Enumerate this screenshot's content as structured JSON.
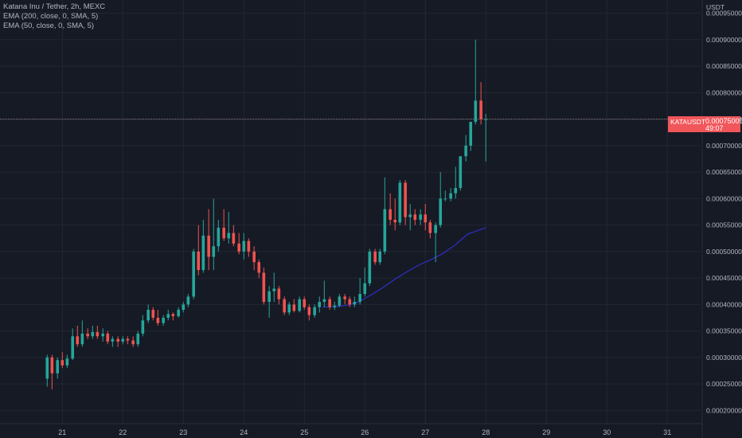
{
  "legend": {
    "title": "Katana Inu / Tether, 2h, MEXC",
    "ema200": "EMA (200, close, 0, SMA, 5)",
    "ema50": "EMA (50, close, 0, SMA, 5)"
  },
  "colors": {
    "background": "#161a25",
    "grid": "#232733",
    "up": "#26a69a",
    "down": "#ef5350",
    "ema": "#2f2fc8",
    "text": "#b2b5be",
    "price_tag": "#f0565a"
  },
  "price_tag": {
    "symbol": "KATAUSDT",
    "price": "0.00075009",
    "countdown": "49:07"
  },
  "chart_data": {
    "type": "candlestick",
    "title": "Katana Inu / Tether, 2h, MEXC",
    "y_axis_unit": "USDT",
    "ylim": [
      0.000175,
      0.000975
    ],
    "xlim": [
      19.97,
      31.55
    ],
    "y_ticks": [
      0.00095,
      0.0009,
      0.00085,
      0.0008,
      0.00075,
      0.0007,
      0.00065,
      0.0006,
      0.00055,
      0.0005,
      0.00045,
      0.0004,
      0.00035,
      0.0003,
      0.00025,
      0.0002
    ],
    "y_tick_labels": [
      "0.00095000",
      "0.00090000",
      "0.00085000",
      "0.00080000",
      "0.00075000",
      "0.00070000",
      "0.00065000",
      "0.00060000",
      "0.00055000",
      "0.00050000",
      "0.00045000",
      "0.00040000",
      "0.00035000",
      "0.00030000",
      "0.00025000",
      "0.00020000"
    ],
    "x_ticks": [
      21,
      22,
      23,
      24,
      25,
      26,
      27,
      28,
      29,
      30,
      31
    ],
    "x_tick_labels": [
      "21",
      "22",
      "23",
      "24",
      "25",
      "26",
      "27",
      "28",
      "29",
      "30",
      "31"
    ],
    "grid": true,
    "last_price": 0.00075009,
    "candles": [
      {
        "t": 20.75,
        "o": 0.00026,
        "h": 0.000305,
        "l": 0.000245,
        "c": 0.0003
      },
      {
        "t": 20.83,
        "o": 0.0003,
        "h": 0.000305,
        "l": 0.00024,
        "c": 0.00027
      },
      {
        "t": 20.92,
        "o": 0.00027,
        "h": 0.0003,
        "l": 0.00026,
        "c": 0.000295
      },
      {
        "t": 21.0,
        "o": 0.000295,
        "h": 0.00031,
        "l": 0.00028,
        "c": 0.000285
      },
      {
        "t": 21.08,
        "o": 0.000285,
        "h": 0.000305,
        "l": 0.00028,
        "c": 0.000298
      },
      {
        "t": 21.17,
        "o": 0.000298,
        "h": 0.000355,
        "l": 0.000295,
        "c": 0.00034
      },
      {
        "t": 21.25,
        "o": 0.00034,
        "h": 0.00036,
        "l": 0.00032,
        "c": 0.000325
      },
      {
        "t": 21.33,
        "o": 0.000325,
        "h": 0.00037,
        "l": 0.00032,
        "c": 0.000345
      },
      {
        "t": 21.42,
        "o": 0.000345,
        "h": 0.000355,
        "l": 0.000335,
        "c": 0.00034
      },
      {
        "t": 21.5,
        "o": 0.00034,
        "h": 0.00036,
        "l": 0.000335,
        "c": 0.000348
      },
      {
        "t": 21.58,
        "o": 0.000348,
        "h": 0.00036,
        "l": 0.000335,
        "c": 0.00034
      },
      {
        "t": 21.67,
        "o": 0.00034,
        "h": 0.000355,
        "l": 0.00033,
        "c": 0.000345
      },
      {
        "t": 21.75,
        "o": 0.000345,
        "h": 0.00035,
        "l": 0.000325,
        "c": 0.00033
      },
      {
        "t": 21.83,
        "o": 0.00033,
        "h": 0.00034,
        "l": 0.00032,
        "c": 0.000335
      },
      {
        "t": 21.92,
        "o": 0.000335,
        "h": 0.00034,
        "l": 0.00032,
        "c": 0.00033
      },
      {
        "t": 22.0,
        "o": 0.00033,
        "h": 0.00034,
        "l": 0.000325,
        "c": 0.000335
      },
      {
        "t": 22.08,
        "o": 0.000335,
        "h": 0.00034,
        "l": 0.000325,
        "c": 0.000332
      },
      {
        "t": 22.17,
        "o": 0.000332,
        "h": 0.00034,
        "l": 0.00032,
        "c": 0.000325
      },
      {
        "t": 22.25,
        "o": 0.000325,
        "h": 0.00035,
        "l": 0.00032,
        "c": 0.000345
      },
      {
        "t": 22.33,
        "o": 0.000345,
        "h": 0.00038,
        "l": 0.00034,
        "c": 0.00037
      },
      {
        "t": 22.42,
        "o": 0.00037,
        "h": 0.0004,
        "l": 0.000365,
        "c": 0.00039
      },
      {
        "t": 22.5,
        "o": 0.00039,
        "h": 0.000395,
        "l": 0.00037,
        "c": 0.000375
      },
      {
        "t": 22.58,
        "o": 0.000375,
        "h": 0.00039,
        "l": 0.00036,
        "c": 0.000365
      },
      {
        "t": 22.67,
        "o": 0.000365,
        "h": 0.00038,
        "l": 0.00036,
        "c": 0.000375
      },
      {
        "t": 22.75,
        "o": 0.000375,
        "h": 0.00039,
        "l": 0.00037,
        "c": 0.000382
      },
      {
        "t": 22.83,
        "o": 0.000382,
        "h": 0.000385,
        "l": 0.00037,
        "c": 0.000378
      },
      {
        "t": 22.92,
        "o": 0.000378,
        "h": 0.000395,
        "l": 0.000375,
        "c": 0.00039
      },
      {
        "t": 23.0,
        "o": 0.00039,
        "h": 0.000405,
        "l": 0.000385,
        "c": 0.0004
      },
      {
        "t": 23.08,
        "o": 0.0004,
        "h": 0.00042,
        "l": 0.000395,
        "c": 0.000415
      },
      {
        "t": 23.17,
        "o": 0.000415,
        "h": 0.000505,
        "l": 0.00041,
        "c": 0.0005
      },
      {
        "t": 23.25,
        "o": 0.0005,
        "h": 0.00055,
        "l": 0.000455,
        "c": 0.000465
      },
      {
        "t": 23.33,
        "o": 0.000465,
        "h": 0.00056,
        "l": 0.00046,
        "c": 0.00053
      },
      {
        "t": 23.42,
        "o": 0.00053,
        "h": 0.00058,
        "l": 0.000465,
        "c": 0.00049
      },
      {
        "t": 23.5,
        "o": 0.00049,
        "h": 0.0006,
        "l": 0.000465,
        "c": 0.00051
      },
      {
        "t": 23.58,
        "o": 0.00051,
        "h": 0.00056,
        "l": 0.0005,
        "c": 0.000545
      },
      {
        "t": 23.67,
        "o": 0.000545,
        "h": 0.00058,
        "l": 0.00052,
        "c": 0.000525
      },
      {
        "t": 23.75,
        "o": 0.000525,
        "h": 0.000575,
        "l": 0.000515,
        "c": 0.000535
      },
      {
        "t": 23.83,
        "o": 0.000535,
        "h": 0.00055,
        "l": 0.00051,
        "c": 0.000515
      },
      {
        "t": 23.92,
        "o": 0.000515,
        "h": 0.000535,
        "l": 0.000495,
        "c": 0.0005
      },
      {
        "t": 24.0,
        "o": 0.0005,
        "h": 0.000535,
        "l": 0.000485,
        "c": 0.00052
      },
      {
        "t": 24.08,
        "o": 0.00052,
        "h": 0.000525,
        "l": 0.00049,
        "c": 0.0005
      },
      {
        "t": 24.17,
        "o": 0.0005,
        "h": 0.00051,
        "l": 0.000465,
        "c": 0.00048
      },
      {
        "t": 24.25,
        "o": 0.00048,
        "h": 0.000485,
        "l": 0.00045,
        "c": 0.00046
      },
      {
        "t": 24.33,
        "o": 0.00046,
        "h": 0.00047,
        "l": 0.0004,
        "c": 0.000405
      },
      {
        "t": 24.42,
        "o": 0.000405,
        "h": 0.000435,
        "l": 0.000375,
        "c": 0.000425
      },
      {
        "t": 24.5,
        "o": 0.000425,
        "h": 0.00046,
        "l": 0.000405,
        "c": 0.00043
      },
      {
        "t": 24.58,
        "o": 0.00043,
        "h": 0.000435,
        "l": 0.0004,
        "c": 0.00041
      },
      {
        "t": 24.67,
        "o": 0.00041,
        "h": 0.000415,
        "l": 0.00038,
        "c": 0.000385
      },
      {
        "t": 24.75,
        "o": 0.000385,
        "h": 0.000405,
        "l": 0.00038,
        "c": 0.0004
      },
      {
        "t": 24.83,
        "o": 0.0004,
        "h": 0.00041,
        "l": 0.000385,
        "c": 0.000388
      },
      {
        "t": 24.92,
        "o": 0.000388,
        "h": 0.000415,
        "l": 0.000385,
        "c": 0.00041
      },
      {
        "t": 25.0,
        "o": 0.00041,
        "h": 0.000415,
        "l": 0.00039,
        "c": 0.000395
      },
      {
        "t": 25.08,
        "o": 0.000395,
        "h": 0.0004,
        "l": 0.00037,
        "c": 0.00038
      },
      {
        "t": 25.17,
        "o": 0.00038,
        "h": 0.0004,
        "l": 0.000375,
        "c": 0.000395
      },
      {
        "t": 25.25,
        "o": 0.000395,
        "h": 0.000415,
        "l": 0.000385,
        "c": 0.000405
      },
      {
        "t": 25.33,
        "o": 0.000405,
        "h": 0.000445,
        "l": 0.000395,
        "c": 0.00041
      },
      {
        "t": 25.42,
        "o": 0.00041,
        "h": 0.000415,
        "l": 0.00039,
        "c": 0.000395
      },
      {
        "t": 25.5,
        "o": 0.000395,
        "h": 0.000405,
        "l": 0.00039,
        "c": 0.000398
      },
      {
        "t": 25.58,
        "o": 0.000398,
        "h": 0.00042,
        "l": 0.000395,
        "c": 0.000415
      },
      {
        "t": 25.67,
        "o": 0.000415,
        "h": 0.00042,
        "l": 0.0004,
        "c": 0.00041
      },
      {
        "t": 25.75,
        "o": 0.00041,
        "h": 0.000415,
        "l": 0.000395,
        "c": 0.0004
      },
      {
        "t": 25.83,
        "o": 0.0004,
        "h": 0.000415,
        "l": 0.000395,
        "c": 0.000405
      },
      {
        "t": 25.92,
        "o": 0.000405,
        "h": 0.00045,
        "l": 0.0004,
        "c": 0.00042
      },
      {
        "t": 26.0,
        "o": 0.00042,
        "h": 0.00047,
        "l": 0.000415,
        "c": 0.00044
      },
      {
        "t": 26.08,
        "o": 0.00044,
        "h": 0.000505,
        "l": 0.000435,
        "c": 0.0005
      },
      {
        "t": 26.17,
        "o": 0.0005,
        "h": 0.000505,
        "l": 0.000475,
        "c": 0.00048
      },
      {
        "t": 26.25,
        "o": 0.00048,
        "h": 0.000505,
        "l": 0.000475,
        "c": 0.0005
      },
      {
        "t": 26.33,
        "o": 0.0005,
        "h": 0.00064,
        "l": 0.000495,
        "c": 0.00058
      },
      {
        "t": 26.42,
        "o": 0.00058,
        "h": 0.00061,
        "l": 0.00055,
        "c": 0.00056
      },
      {
        "t": 26.5,
        "o": 0.00056,
        "h": 0.0006,
        "l": 0.00054,
        "c": 0.000555
      },
      {
        "t": 26.58,
        "o": 0.000555,
        "h": 0.000635,
        "l": 0.00055,
        "c": 0.00063
      },
      {
        "t": 26.67,
        "o": 0.00063,
        "h": 0.000635,
        "l": 0.00055,
        "c": 0.000565
      },
      {
        "t": 26.75,
        "o": 0.000565,
        "h": 0.00059,
        "l": 0.00054,
        "c": 0.00057
      },
      {
        "t": 26.83,
        "o": 0.00057,
        "h": 0.00058,
        "l": 0.00055,
        "c": 0.00056
      },
      {
        "t": 26.92,
        "o": 0.00056,
        "h": 0.00058,
        "l": 0.00055,
        "c": 0.00057
      },
      {
        "t": 27.0,
        "o": 0.00057,
        "h": 0.00059,
        "l": 0.00054,
        "c": 0.000555
      },
      {
        "t": 27.08,
        "o": 0.000555,
        "h": 0.00056,
        "l": 0.000525,
        "c": 0.000535
      },
      {
        "t": 27.17,
        "o": 0.000535,
        "h": 0.000555,
        "l": 0.00048,
        "c": 0.00055
      },
      {
        "t": 27.25,
        "o": 0.00055,
        "h": 0.00065,
        "l": 0.000545,
        "c": 0.0006
      },
      {
        "t": 27.33,
        "o": 0.0006,
        "h": 0.000615,
        "l": 0.000595,
        "c": 0.0006
      },
      {
        "t": 27.42,
        "o": 0.0006,
        "h": 0.00062,
        "l": 0.000595,
        "c": 0.00061
      },
      {
        "t": 27.5,
        "o": 0.00061,
        "h": 0.00066,
        "l": 0.0006,
        "c": 0.00062
      },
      {
        "t": 27.58,
        "o": 0.00062,
        "h": 0.00068,
        "l": 0.000615,
        "c": 0.00068
      },
      {
        "t": 27.67,
        "o": 0.00068,
        "h": 0.00072,
        "l": 0.00067,
        "c": 0.0007
      },
      {
        "t": 27.75,
        "o": 0.0007,
        "h": 0.000745,
        "l": 0.00069,
        "c": 0.000745
      },
      {
        "t": 27.83,
        "o": 0.000745,
        "h": 0.0009,
        "l": 0.00074,
        "c": 0.000785
      },
      {
        "t": 27.92,
        "o": 0.000785,
        "h": 0.00082,
        "l": 0.00074,
        "c": 0.00075
      },
      {
        "t": 28.0,
        "o": 0.00075,
        "h": 0.00076,
        "l": 0.00067,
        "c": 0.00075009
      }
    ],
    "series": [
      {
        "name": "EMA (50, close, 0, SMA, 5)",
        "x": [
          25.3,
          25.5,
          25.7,
          25.9,
          26.1,
          26.3,
          26.5,
          26.7,
          26.9,
          27.1,
          27.3,
          27.5,
          27.7,
          28.0
        ],
        "values": [
          0.000395,
          0.000396,
          0.000398,
          0.000405,
          0.000418,
          0.000432,
          0.000448,
          0.000462,
          0.000475,
          0.000485,
          0.000497,
          0.000513,
          0.000533,
          0.000545
        ]
      }
    ]
  }
}
